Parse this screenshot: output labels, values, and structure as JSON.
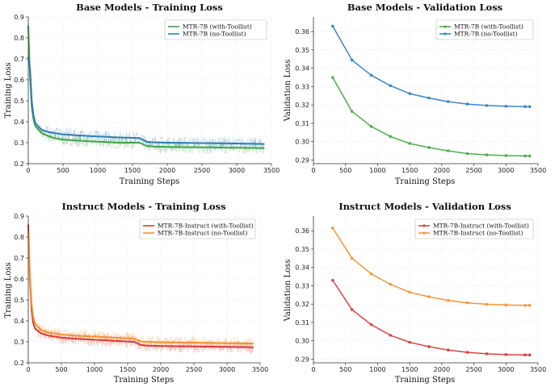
{
  "chart_data": [
    {
      "type": "line",
      "title": "Base Models - Training Loss",
      "xlabel": "Training Steps",
      "ylabel": "Training Loss",
      "xlim": [
        0,
        3500
      ],
      "ylim": [
        0.2,
        0.9
      ],
      "xticks": [
        "0",
        "500",
        "1000",
        "1500",
        "2000",
        "2500",
        "3000",
        "3500"
      ],
      "yticks": [
        "0.2",
        "0.3",
        "0.4",
        "0.5",
        "0.6",
        "0.7",
        "0.8",
        "0.9"
      ],
      "grid": true,
      "legend": "top-right",
      "series": [
        {
          "name": "MTR-7B (with-Toollist)",
          "color": "#3fa548",
          "x": [
            0,
            25,
            50,
            75,
            100,
            150,
            200,
            300,
            400,
            500,
            700,
            1000,
            1300,
            1600,
            1700,
            1800,
            2000,
            2500,
            3000,
            3400
          ],
          "y": [
            0.86,
            0.62,
            0.47,
            0.41,
            0.38,
            0.36,
            0.345,
            0.33,
            0.32,
            0.315,
            0.31,
            0.305,
            0.3,
            0.3,
            0.285,
            0.282,
            0.28,
            0.278,
            0.276,
            0.274
          ]
        },
        {
          "name": "MTR-7B (no-Toollist)",
          "color": "#2f7db8",
          "x": [
            0,
            25,
            50,
            75,
            100,
            150,
            200,
            300,
            400,
            500,
            700,
            1000,
            1300,
            1600,
            1700,
            1800,
            2000,
            2500,
            3000,
            3400
          ],
          "y": [
            0.71,
            0.66,
            0.5,
            0.43,
            0.395,
            0.375,
            0.36,
            0.35,
            0.345,
            0.34,
            0.335,
            0.33,
            0.325,
            0.322,
            0.305,
            0.302,
            0.3,
            0.298,
            0.296,
            0.294
          ]
        }
      ]
    },
    {
      "type": "line",
      "title": "Base Models - Validation Loss",
      "xlabel": "Training Steps",
      "ylabel": "Validation Loss",
      "xlim": [
        0,
        3500
      ],
      "ylim": [
        0.288,
        0.368
      ],
      "xticks": [
        "0",
        "500",
        "1000",
        "1500",
        "2000",
        "2500",
        "3000",
        "3500"
      ],
      "yticks": [
        "0.29",
        "0.30",
        "0.31",
        "0.32",
        "0.33",
        "0.34",
        "0.35",
        "0.36"
      ],
      "grid": true,
      "legend": "top-right",
      "series": [
        {
          "name": "MTR-7B (with-Toollist)",
          "color": "#4fae4f",
          "x": [
            300,
            600,
            900,
            1200,
            1500,
            1800,
            2100,
            2400,
            2700,
            3000,
            3300,
            3370
          ],
          "y": [
            0.335,
            0.3165,
            0.3083,
            0.3028,
            0.299,
            0.2968,
            0.295,
            0.2935,
            0.2928,
            0.2924,
            0.2922,
            0.2922
          ]
        },
        {
          "name": "MTR-7B (no-Toollist)",
          "color": "#3c87c4",
          "x": [
            300,
            600,
            900,
            1200,
            1500,
            1800,
            2100,
            2400,
            2700,
            3000,
            3300,
            3370
          ],
          "y": [
            0.363,
            0.3445,
            0.3362,
            0.3305,
            0.3262,
            0.3238,
            0.3218,
            0.3205,
            0.3197,
            0.3193,
            0.3191,
            0.3191
          ]
        }
      ]
    },
    {
      "type": "line",
      "title": "Instruct Models - Training Loss",
      "xlabel": "Training Steps",
      "ylabel": "Training Loss",
      "xlim": [
        0,
        3500
      ],
      "ylim": [
        0.2,
        0.9
      ],
      "xticks": [
        "0",
        "500",
        "1000",
        "1500",
        "2000",
        "2500",
        "3000",
        "3500"
      ],
      "yticks": [
        "0.2",
        "0.3",
        "0.4",
        "0.5",
        "0.6",
        "0.7",
        "0.8",
        "0.9"
      ],
      "grid": true,
      "legend": "top-right",
      "series": [
        {
          "name": "MTR-7B-Instruct (with-Toollist)",
          "color": "#d83a34",
          "x": [
            0,
            25,
            50,
            75,
            100,
            150,
            200,
            300,
            400,
            500,
            700,
            1000,
            1300,
            1600,
            1700,
            1800,
            2000,
            2500,
            3000,
            3400
          ],
          "y": [
            0.86,
            0.6,
            0.45,
            0.39,
            0.365,
            0.35,
            0.34,
            0.33,
            0.325,
            0.32,
            0.315,
            0.31,
            0.305,
            0.3,
            0.285,
            0.282,
            0.28,
            0.278,
            0.276,
            0.274
          ]
        },
        {
          "name": "MTR-7B-Instruct (no-Toollist)",
          "color": "#f5922f",
          "x": [
            0,
            25,
            50,
            75,
            100,
            150,
            200,
            300,
            400,
            500,
            700,
            1000,
            1300,
            1600,
            1700,
            1800,
            2000,
            2500,
            3000,
            3400
          ],
          "y": [
            0.82,
            0.62,
            0.48,
            0.42,
            0.39,
            0.37,
            0.355,
            0.345,
            0.34,
            0.335,
            0.33,
            0.325,
            0.32,
            0.315,
            0.302,
            0.3,
            0.298,
            0.296,
            0.294,
            0.292
          ]
        }
      ]
    },
    {
      "type": "line",
      "title": "Instruct Models - Validation Loss",
      "xlabel": "Training Steps",
      "ylabel": "Validation Loss",
      "xlim": [
        0,
        3500
      ],
      "ylim": [
        0.288,
        0.368
      ],
      "xticks": [
        "0",
        "500",
        "1000",
        "1500",
        "2000",
        "2500",
        "3000",
        "3500"
      ],
      "yticks": [
        "0.29",
        "0.30",
        "0.31",
        "0.32",
        "0.33",
        "0.34",
        "0.35",
        "0.36"
      ],
      "grid": true,
      "legend": "top-right",
      "series": [
        {
          "name": "MTR-7B-Instruct (with-Toollist)",
          "color": "#d84545",
          "x": [
            300,
            600,
            900,
            1200,
            1500,
            1800,
            2100,
            2400,
            2700,
            3000,
            3300,
            3370
          ],
          "y": [
            0.333,
            0.317,
            0.3088,
            0.303,
            0.2992,
            0.2968,
            0.295,
            0.2937,
            0.2929,
            0.2925,
            0.2923,
            0.2923
          ]
        },
        {
          "name": "MTR-7B-Instruct (no-Toollist)",
          "color": "#f5963a",
          "x": [
            300,
            600,
            900,
            1200,
            1500,
            1800,
            2100,
            2400,
            2700,
            3000,
            3300,
            3370
          ],
          "y": [
            0.3615,
            0.345,
            0.3365,
            0.3308,
            0.3265,
            0.324,
            0.322,
            0.3207,
            0.3199,
            0.3195,
            0.3193,
            0.3193
          ]
        }
      ]
    }
  ]
}
